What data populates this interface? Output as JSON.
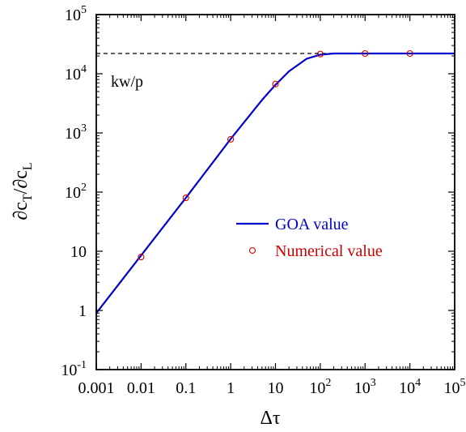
{
  "chart_data": {
    "type": "line",
    "xscale": "log",
    "yscale": "log",
    "xlim": [
      0.001,
      100000
    ],
    "ylim": [
      0.1,
      100000
    ],
    "x_ticks": [
      {
        "value": 0.001,
        "label": "0.001"
      },
      {
        "value": 0.01,
        "label": "0.01"
      },
      {
        "value": 0.1,
        "label": "0.1"
      },
      {
        "value": 1,
        "label": "1"
      },
      {
        "value": 10,
        "label": "10"
      },
      {
        "value": 100,
        "base": "10",
        "exp": "2"
      },
      {
        "value": 1000,
        "base": "10",
        "exp": "3"
      },
      {
        "value": 10000,
        "base": "10",
        "exp": "4"
      },
      {
        "value": 100000,
        "base": "10",
        "exp": "5"
      }
    ],
    "y_ticks": [
      {
        "value": 0.1,
        "base": "10",
        "exp": "-1"
      },
      {
        "value": 1,
        "label": "1"
      },
      {
        "value": 10,
        "label": "10"
      },
      {
        "value": 100,
        "base": "10",
        "exp": "2"
      },
      {
        "value": 1000,
        "base": "10",
        "exp": "3"
      },
      {
        "value": 10000,
        "base": "10",
        "exp": "4"
      },
      {
        "value": 100000,
        "base": "10",
        "exp": "5"
      }
    ],
    "xlabel": "Δτ",
    "ylabel": {
      "d": "∂c",
      "sub_T": "T",
      "slash": "/∂c",
      "sub_L": "L"
    },
    "grid": false,
    "legend_position": "center-right",
    "series": [
      {
        "name": "GOA value",
        "style": "line",
        "color": "#0000cc",
        "x": [
          0.001,
          0.01,
          0.1,
          1,
          5,
          10,
          20,
          50,
          100,
          200,
          1000,
          100000
        ],
        "y": [
          0.9,
          8.5,
          80,
          790,
          3600,
          6500,
          11000,
          18000,
          21000,
          22000,
          22000,
          22000
        ]
      },
      {
        "name": "Numerical value",
        "style": "markers",
        "marker": "open-circle",
        "color": "#cc0000",
        "x": [
          0.01,
          0.1,
          1,
          10,
          100,
          1000,
          10000
        ],
        "y": [
          8,
          80,
          780,
          6700,
          21500,
          22000,
          22000
        ]
      }
    ],
    "reference_line": {
      "y": 22000,
      "style": "dashed",
      "color": "#000000",
      "label": "kw/p"
    }
  }
}
